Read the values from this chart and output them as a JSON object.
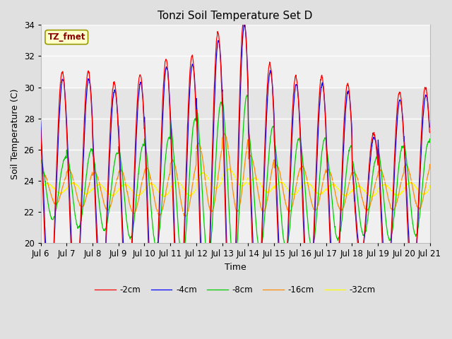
{
  "title": "Tonzi Soil Temperature Set D",
  "xlabel": "Time",
  "ylabel": "Soil Temperature (C)",
  "ylim": [
    20,
    34
  ],
  "xlim": [
    0,
    360
  ],
  "annotation_text": "TZ_fmet",
  "annotation_color": "#8B0000",
  "annotation_bg": "#FFFFCC",
  "annotation_border": "#999900",
  "legend_labels": [
    "-2cm",
    "-4cm",
    "-8cm",
    "-16cm",
    "-32cm"
  ],
  "line_colors": [
    "#FF0000",
    "#0000FF",
    "#00CC00",
    "#FF8C00",
    "#FFFF00"
  ],
  "x_tick_labels": [
    "Jul 6",
    "Jul 7",
    "Jul 8",
    "Jul 9",
    "Jul 10",
    "Jul 11",
    "Jul 12",
    "Jul 13",
    "Jul 14",
    "Jul 15",
    "Jul 16",
    "Jul 17",
    "Jul 18",
    "Jul 19",
    "Jul 20",
    "Jul 21"
  ],
  "bg_color": "#E0E0E0",
  "plot_bg_outer": "#DCDCDC",
  "plot_bg_inner": "#F0F0F0",
  "grid_color": "#FFFFFF",
  "figsize": [
    6.4,
    4.8
  ],
  "dpi": 100
}
